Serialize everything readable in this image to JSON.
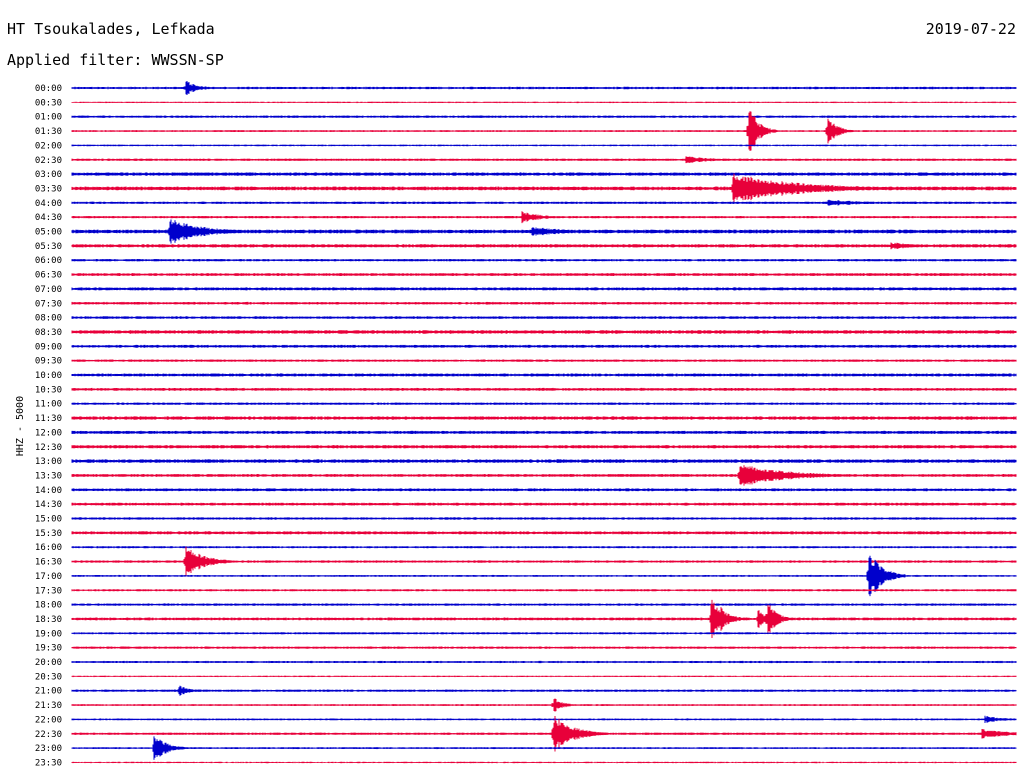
{
  "header": {
    "station": "HT Tsoukalades, Lefkada",
    "date": "2019-07-22",
    "filter": "Applied filter: WWSSN-SP"
  },
  "chart_data": {
    "type": "line",
    "title": "HT Tsoukalades, Lefkada",
    "ylabel": "HHZ - 5000",
    "x_unit": "minutes within 30-min row",
    "xlim": [
      0,
      30
    ],
    "colors": {
      "even": "#0000cc",
      "odd": "#e8003a"
    },
    "rows": [
      "00:00",
      "00:30",
      "01:00",
      "01:30",
      "02:00",
      "02:30",
      "03:00",
      "03:30",
      "04:00",
      "04:30",
      "05:00",
      "05:30",
      "06:00",
      "06:30",
      "07:00",
      "07:30",
      "08:00",
      "08:30",
      "09:00",
      "09:30",
      "10:00",
      "10:30",
      "11:00",
      "11:30",
      "12:00",
      "12:30",
      "13:00",
      "13:30",
      "14:00",
      "14:30",
      "15:00",
      "15:30",
      "16:00",
      "16:30",
      "17:00",
      "17:30",
      "18:00",
      "18:30",
      "19:00",
      "19:30",
      "20:00",
      "20:30",
      "21:00",
      "21:30",
      "22:00",
      "22:30",
      "23:00",
      "23:30"
    ],
    "noise": [
      1,
      0.6,
      1,
      0.8,
      0.7,
      1,
      1.4,
      1.6,
      1,
      1,
      1.6,
      1.4,
      1,
      1.2,
      1.3,
      1.1,
      1.1,
      1.5,
      1.2,
      1,
      1.3,
      1.2,
      1,
      1.4,
      1.3,
      1.4,
      1.5,
      1.2,
      1.2,
      1.2,
      1,
      1.3,
      0.9,
      1,
      0.8,
      0.9,
      1,
      1.2,
      0.9,
      1,
      0.9,
      0.6,
      1,
      0.8,
      0.8,
      1,
      0.8,
      0.6
    ],
    "events": [
      {
        "row": "00:00",
        "t": 3.6,
        "amp": 8,
        "dur": 0.4
      },
      {
        "row": "01:30",
        "t": 21.5,
        "amp": 28,
        "dur": 0.3
      },
      {
        "row": "01:30",
        "t": 24.0,
        "amp": 16,
        "dur": 0.3
      },
      {
        "row": "02:30",
        "t": 19.5,
        "amp": 4,
        "dur": 0.8
      },
      {
        "row": "03:30",
        "t": 21.0,
        "amp": 16,
        "dur": 2.0
      },
      {
        "row": "04:00",
        "t": 24.0,
        "amp": 4,
        "dur": 1.0
      },
      {
        "row": "04:30",
        "t": 14.3,
        "amp": 6,
        "dur": 0.6
      },
      {
        "row": "05:00",
        "t": 3.1,
        "amp": 14,
        "dur": 1.0
      },
      {
        "row": "05:00",
        "t": 14.6,
        "amp": 5,
        "dur": 1.2
      },
      {
        "row": "05:30",
        "t": 26.0,
        "amp": 4,
        "dur": 1.0
      },
      {
        "row": "13:30",
        "t": 21.2,
        "amp": 12,
        "dur": 1.5
      },
      {
        "row": "16:30",
        "t": 3.6,
        "amp": 16,
        "dur": 0.6
      },
      {
        "row": "17:00",
        "t": 25.3,
        "amp": 28,
        "dur": 0.4
      },
      {
        "row": "18:30",
        "t": 20.3,
        "amp": 22,
        "dur": 0.4
      },
      {
        "row": "18:30",
        "t": 20.6,
        "amp": 14,
        "dur": 0.2
      },
      {
        "row": "18:30",
        "t": 21.8,
        "amp": 10,
        "dur": 0.3
      },
      {
        "row": "18:30",
        "t": 22.1,
        "amp": 18,
        "dur": 0.3
      },
      {
        "row": "21:00",
        "t": 3.4,
        "amp": 6,
        "dur": 0.3
      },
      {
        "row": "21:30",
        "t": 15.3,
        "amp": 8,
        "dur": 0.3
      },
      {
        "row": "22:00",
        "t": 29.0,
        "amp": 4,
        "dur": 0.6
      },
      {
        "row": "22:30",
        "t": 15.3,
        "amp": 20,
        "dur": 0.6
      },
      {
        "row": "22:30",
        "t": 28.9,
        "amp": 5,
        "dur": 1.0
      },
      {
        "row": "23:00",
        "t": 2.6,
        "amp": 14,
        "dur": 0.4
      }
    ]
  }
}
